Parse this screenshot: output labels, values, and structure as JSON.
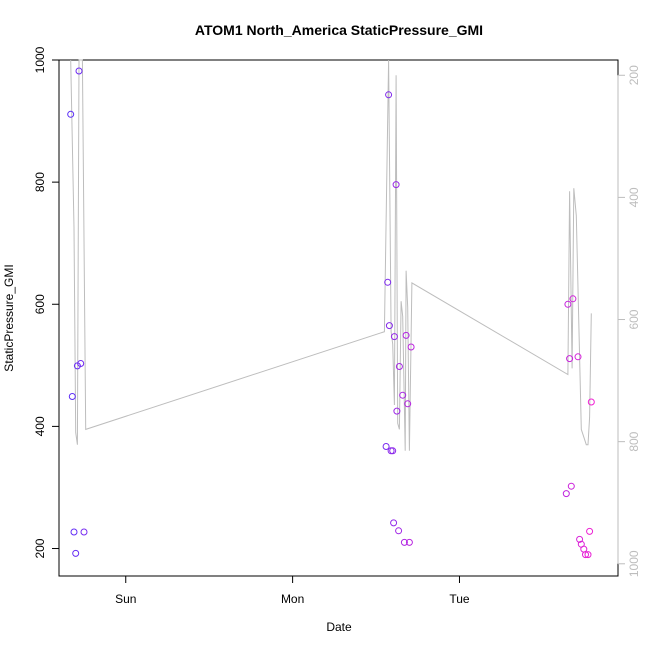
{
  "chart_data": {
    "type": "scatter",
    "title": "ATOM1 North_America StaticPressure_GMI",
    "xlabel": "Date",
    "ylabel": "StaticPressure_GMI",
    "xlim": [
      -1.4,
      1.95
    ],
    "ylim": [
      155,
      1000
    ],
    "y2lim": [
      1020,
      175
    ],
    "x_ticks": [
      {
        "value": -1,
        "label": "Sun"
      },
      {
        "value": 0,
        "label": "Mon"
      },
      {
        "value": 1,
        "label": "Tue"
      }
    ],
    "y_ticks": [
      200,
      400,
      600,
      800,
      1000
    ],
    "y2_ticks": [
      200,
      400,
      600,
      800,
      1000
    ],
    "grid": false,
    "series": [
      {
        "marker": "circle-open",
        "color_start": "#5a2df7",
        "color_end": "#f020d2",
        "points": [
          {
            "x": -1.33,
            "y": 911
          },
          {
            "x": -1.32,
            "y": 449
          },
          {
            "x": -1.31,
            "y": 227
          },
          {
            "x": -1.3,
            "y": 192
          },
          {
            "x": -1.29,
            "y": 499
          },
          {
            "x": -1.28,
            "y": 982
          },
          {
            "x": -1.27,
            "y": 503
          },
          {
            "x": -1.25,
            "y": 227
          },
          {
            "x": 0.56,
            "y": 367
          },
          {
            "x": 0.57,
            "y": 636
          },
          {
            "x": 0.575,
            "y": 943
          },
          {
            "x": 0.58,
            "y": 565
          },
          {
            "x": 0.59,
            "y": 360
          },
          {
            "x": 0.6,
            "y": 360
          },
          {
            "x": 0.605,
            "y": 242
          },
          {
            "x": 0.61,
            "y": 547
          },
          {
            "x": 0.62,
            "y": 796
          },
          {
            "x": 0.625,
            "y": 425
          },
          {
            "x": 0.635,
            "y": 229
          },
          {
            "x": 0.64,
            "y": 498
          },
          {
            "x": 0.66,
            "y": 451
          },
          {
            "x": 0.67,
            "y": 210
          },
          {
            "x": 0.68,
            "y": 549
          },
          {
            "x": 0.69,
            "y": 437
          },
          {
            "x": 0.7,
            "y": 210
          },
          {
            "x": 0.71,
            "y": 530
          },
          {
            "x": 1.64,
            "y": 290
          },
          {
            "x": 1.65,
            "y": 600
          },
          {
            "x": 1.66,
            "y": 511
          },
          {
            "x": 1.67,
            "y": 302
          },
          {
            "x": 1.68,
            "y": 609
          },
          {
            "x": 1.71,
            "y": 514
          },
          {
            "x": 1.72,
            "y": 215
          },
          {
            "x": 1.73,
            "y": 207
          },
          {
            "x": 1.745,
            "y": 199
          },
          {
            "x": 1.755,
            "y": 190
          },
          {
            "x": 1.77,
            "y": 190
          },
          {
            "x": 1.78,
            "y": 228
          },
          {
            "x": 1.79,
            "y": 440
          }
        ]
      },
      {
        "type": "line",
        "axis": "right",
        "color": "#bdbdbd",
        "points": [
          {
            "x": -1.33,
            "y": 175
          },
          {
            "x": -1.31,
            "y": 450
          },
          {
            "x": -1.3,
            "y": 785
          },
          {
            "x": -1.29,
            "y": 805
          },
          {
            "x": -1.28,
            "y": 175
          },
          {
            "x": -1.26,
            "y": 175
          },
          {
            "x": -1.24,
            "y": 780
          },
          {
            "x": 0.55,
            "y": 620
          },
          {
            "x": 0.575,
            "y": 175
          },
          {
            "x": 0.59,
            "y": 620
          },
          {
            "x": 0.6,
            "y": 640
          },
          {
            "x": 0.61,
            "y": 740
          },
          {
            "x": 0.62,
            "y": 200
          },
          {
            "x": 0.63,
            "y": 770
          },
          {
            "x": 0.64,
            "y": 780
          },
          {
            "x": 0.65,
            "y": 570
          },
          {
            "x": 0.66,
            "y": 595
          },
          {
            "x": 0.675,
            "y": 815
          },
          {
            "x": 0.68,
            "y": 520
          },
          {
            "x": 0.69,
            "y": 580
          },
          {
            "x": 0.7,
            "y": 815
          },
          {
            "x": 0.71,
            "y": 630
          },
          {
            "x": 0.715,
            "y": 540
          },
          {
            "x": 1.65,
            "y": 690
          },
          {
            "x": 1.66,
            "y": 390
          },
          {
            "x": 1.675,
            "y": 680
          },
          {
            "x": 1.685,
            "y": 385
          },
          {
            "x": 1.7,
            "y": 430
          },
          {
            "x": 1.73,
            "y": 780
          },
          {
            "x": 1.76,
            "y": 805
          },
          {
            "x": 1.77,
            "y": 805
          },
          {
            "x": 1.78,
            "y": 760
          },
          {
            "x": 1.79,
            "y": 590
          }
        ]
      }
    ]
  }
}
